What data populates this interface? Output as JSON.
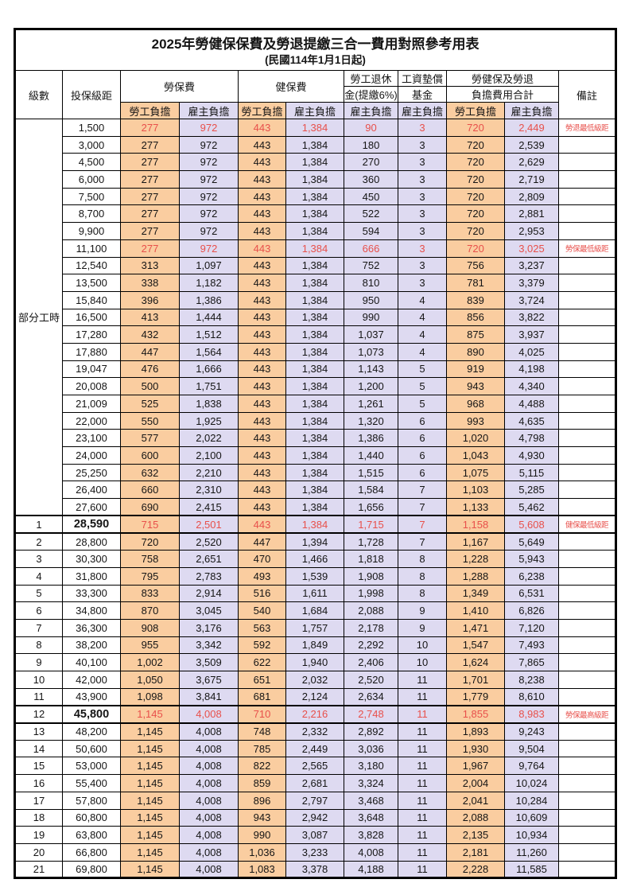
{
  "title": "2025年勞健保保費及勞退提繳三合一費用對照參考用表",
  "subtitle": "(民國114年1月1日起)",
  "colors": {
    "employee_column_bg": "#FACDA0",
    "employer_column_bg": "#DEDAF1",
    "highlight_text": "#E8504B",
    "border": "#000000"
  },
  "header": {
    "level": "級數",
    "bracket": "投保級距",
    "labor_insurance": "勞保費",
    "health_insurance": "健保費",
    "pension_line1": "勞工退休",
    "pension_line2": "金(提繳6%)",
    "wage_fund_line1": "工資墊償",
    "wage_fund_line2": "基金",
    "total_line1": "勞健保及勞退",
    "total_line2": "負擔費用合計",
    "remark": "備註",
    "employee": "勞工負擔",
    "employer": "雇主負擔"
  },
  "part_time_label": "部分工時",
  "part_time_rowspan": 23,
  "rows": [
    {
      "level": "",
      "bracket": "1,500",
      "li_emp": "277",
      "li_er": "972",
      "hi_emp": "443",
      "hi_er": "1,384",
      "pension": "90",
      "fund": "3",
      "tot_emp": "720",
      "tot_er": "2,449",
      "remark": "勞退最低級距",
      "red": true,
      "bold": false,
      "section": false
    },
    {
      "level": "",
      "bracket": "3,000",
      "li_emp": "277",
      "li_er": "972",
      "hi_emp": "443",
      "hi_er": "1,384",
      "pension": "180",
      "fund": "3",
      "tot_emp": "720",
      "tot_er": "2,539",
      "remark": "",
      "red": false,
      "bold": false,
      "section": false
    },
    {
      "level": "",
      "bracket": "4,500",
      "li_emp": "277",
      "li_er": "972",
      "hi_emp": "443",
      "hi_er": "1,384",
      "pension": "270",
      "fund": "3",
      "tot_emp": "720",
      "tot_er": "2,629",
      "remark": "",
      "red": false,
      "bold": false,
      "section": false
    },
    {
      "level": "",
      "bracket": "6,000",
      "li_emp": "277",
      "li_er": "972",
      "hi_emp": "443",
      "hi_er": "1,384",
      "pension": "360",
      "fund": "3",
      "tot_emp": "720",
      "tot_er": "2,719",
      "remark": "",
      "red": false,
      "bold": false,
      "section": false
    },
    {
      "level": "",
      "bracket": "7,500",
      "li_emp": "277",
      "li_er": "972",
      "hi_emp": "443",
      "hi_er": "1,384",
      "pension": "450",
      "fund": "3",
      "tot_emp": "720",
      "tot_er": "2,809",
      "remark": "",
      "red": false,
      "bold": false,
      "section": false
    },
    {
      "level": "",
      "bracket": "8,700",
      "li_emp": "277",
      "li_er": "972",
      "hi_emp": "443",
      "hi_er": "1,384",
      "pension": "522",
      "fund": "3",
      "tot_emp": "720",
      "tot_er": "2,881",
      "remark": "",
      "red": false,
      "bold": false,
      "section": false
    },
    {
      "level": "",
      "bracket": "9,900",
      "li_emp": "277",
      "li_er": "972",
      "hi_emp": "443",
      "hi_er": "1,384",
      "pension": "594",
      "fund": "3",
      "tot_emp": "720",
      "tot_er": "2,953",
      "remark": "",
      "red": false,
      "bold": false,
      "section": false
    },
    {
      "level": "",
      "bracket": "11,100",
      "li_emp": "277",
      "li_er": "972",
      "hi_emp": "443",
      "hi_er": "1,384",
      "pension": "666",
      "fund": "3",
      "tot_emp": "720",
      "tot_er": "3,025",
      "remark": "勞保最低級距",
      "red": true,
      "bold": false,
      "section": false
    },
    {
      "level": "",
      "bracket": "12,540",
      "li_emp": "313",
      "li_er": "1,097",
      "hi_emp": "443",
      "hi_er": "1,384",
      "pension": "752",
      "fund": "3",
      "tot_emp": "756",
      "tot_er": "3,237",
      "remark": "",
      "red": false,
      "bold": false,
      "section": false
    },
    {
      "level": "",
      "bracket": "13,500",
      "li_emp": "338",
      "li_er": "1,182",
      "hi_emp": "443",
      "hi_er": "1,384",
      "pension": "810",
      "fund": "3",
      "tot_emp": "781",
      "tot_er": "3,379",
      "remark": "",
      "red": false,
      "bold": false,
      "section": false
    },
    {
      "level": "",
      "bracket": "15,840",
      "li_emp": "396",
      "li_er": "1,386",
      "hi_emp": "443",
      "hi_er": "1,384",
      "pension": "950",
      "fund": "4",
      "tot_emp": "839",
      "tot_er": "3,724",
      "remark": "",
      "red": false,
      "bold": false,
      "section": false
    },
    {
      "level": "",
      "bracket": "16,500",
      "li_emp": "413",
      "li_er": "1,444",
      "hi_emp": "443",
      "hi_er": "1,384",
      "pension": "990",
      "fund": "4",
      "tot_emp": "856",
      "tot_er": "3,822",
      "remark": "",
      "red": false,
      "bold": false,
      "section": false
    },
    {
      "level": "",
      "bracket": "17,280",
      "li_emp": "432",
      "li_er": "1,512",
      "hi_emp": "443",
      "hi_er": "1,384",
      "pension": "1,037",
      "fund": "4",
      "tot_emp": "875",
      "tot_er": "3,937",
      "remark": "",
      "red": false,
      "bold": false,
      "section": false
    },
    {
      "level": "",
      "bracket": "17,880",
      "li_emp": "447",
      "li_er": "1,564",
      "hi_emp": "443",
      "hi_er": "1,384",
      "pension": "1,073",
      "fund": "4",
      "tot_emp": "890",
      "tot_er": "4,025",
      "remark": "",
      "red": false,
      "bold": false,
      "section": false
    },
    {
      "level": "",
      "bracket": "19,047",
      "li_emp": "476",
      "li_er": "1,666",
      "hi_emp": "443",
      "hi_er": "1,384",
      "pension": "1,143",
      "fund": "5",
      "tot_emp": "919",
      "tot_er": "4,198",
      "remark": "",
      "red": false,
      "bold": false,
      "section": false
    },
    {
      "level": "",
      "bracket": "20,008",
      "li_emp": "500",
      "li_er": "1,751",
      "hi_emp": "443",
      "hi_er": "1,384",
      "pension": "1,200",
      "fund": "5",
      "tot_emp": "943",
      "tot_er": "4,340",
      "remark": "",
      "red": false,
      "bold": false,
      "section": false
    },
    {
      "level": "",
      "bracket": "21,009",
      "li_emp": "525",
      "li_er": "1,838",
      "hi_emp": "443",
      "hi_er": "1,384",
      "pension": "1,261",
      "fund": "5",
      "tot_emp": "968",
      "tot_er": "4,488",
      "remark": "",
      "red": false,
      "bold": false,
      "section": false
    },
    {
      "level": "",
      "bracket": "22,000",
      "li_emp": "550",
      "li_er": "1,925",
      "hi_emp": "443",
      "hi_er": "1,384",
      "pension": "1,320",
      "fund": "6",
      "tot_emp": "993",
      "tot_er": "4,635",
      "remark": "",
      "red": false,
      "bold": false,
      "section": false
    },
    {
      "level": "",
      "bracket": "23,100",
      "li_emp": "577",
      "li_er": "2,022",
      "hi_emp": "443",
      "hi_er": "1,384",
      "pension": "1,386",
      "fund": "6",
      "tot_emp": "1,020",
      "tot_er": "4,798",
      "remark": "",
      "red": false,
      "bold": false,
      "section": false
    },
    {
      "level": "",
      "bracket": "24,000",
      "li_emp": "600",
      "li_er": "2,100",
      "hi_emp": "443",
      "hi_er": "1,384",
      "pension": "1,440",
      "fund": "6",
      "tot_emp": "1,043",
      "tot_er": "4,930",
      "remark": "",
      "red": false,
      "bold": false,
      "section": false
    },
    {
      "level": "",
      "bracket": "25,250",
      "li_emp": "632",
      "li_er": "2,210",
      "hi_emp": "443",
      "hi_er": "1,384",
      "pension": "1,515",
      "fund": "6",
      "tot_emp": "1,075",
      "tot_er": "5,115",
      "remark": "",
      "red": false,
      "bold": false,
      "section": false
    },
    {
      "level": "",
      "bracket": "26,400",
      "li_emp": "660",
      "li_er": "2,310",
      "hi_emp": "443",
      "hi_er": "1,384",
      "pension": "1,584",
      "fund": "7",
      "tot_emp": "1,103",
      "tot_er": "5,285",
      "remark": "",
      "red": false,
      "bold": false,
      "section": false
    },
    {
      "level": "",
      "bracket": "27,600",
      "li_emp": "690",
      "li_er": "2,415",
      "hi_emp": "443",
      "hi_er": "1,384",
      "pension": "1,656",
      "fund": "7",
      "tot_emp": "1,133",
      "tot_er": "5,462",
      "remark": "",
      "red": false,
      "bold": false,
      "section": false
    },
    {
      "level": "1",
      "bracket": "28,590",
      "li_emp": "715",
      "li_er": "2,501",
      "hi_emp": "443",
      "hi_er": "1,384",
      "pension": "1,715",
      "fund": "7",
      "tot_emp": "1,158",
      "tot_er": "5,608",
      "remark": "健保最低級距",
      "red": true,
      "bold": true,
      "section": true
    },
    {
      "level": "2",
      "bracket": "28,800",
      "li_emp": "720",
      "li_er": "2,520",
      "hi_emp": "447",
      "hi_er": "1,394",
      "pension": "1,728",
      "fund": "7",
      "tot_emp": "1,167",
      "tot_er": "5,649",
      "remark": "",
      "red": false,
      "bold": false,
      "section": false
    },
    {
      "level": "3",
      "bracket": "30,300",
      "li_emp": "758",
      "li_er": "2,651",
      "hi_emp": "470",
      "hi_er": "1,466",
      "pension": "1,818",
      "fund": "8",
      "tot_emp": "1,228",
      "tot_er": "5,943",
      "remark": "",
      "red": false,
      "bold": false,
      "section": false
    },
    {
      "level": "4",
      "bracket": "31,800",
      "li_emp": "795",
      "li_er": "2,783",
      "hi_emp": "493",
      "hi_er": "1,539",
      "pension": "1,908",
      "fund": "8",
      "tot_emp": "1,288",
      "tot_er": "6,238",
      "remark": "",
      "red": false,
      "bold": false,
      "section": false
    },
    {
      "level": "5",
      "bracket": "33,300",
      "li_emp": "833",
      "li_er": "2,914",
      "hi_emp": "516",
      "hi_er": "1,611",
      "pension": "1,998",
      "fund": "8",
      "tot_emp": "1,349",
      "tot_er": "6,531",
      "remark": "",
      "red": false,
      "bold": false,
      "section": false
    },
    {
      "level": "6",
      "bracket": "34,800",
      "li_emp": "870",
      "li_er": "3,045",
      "hi_emp": "540",
      "hi_er": "1,684",
      "pension": "2,088",
      "fund": "9",
      "tot_emp": "1,410",
      "tot_er": "6,826",
      "remark": "",
      "red": false,
      "bold": false,
      "section": false
    },
    {
      "level": "7",
      "bracket": "36,300",
      "li_emp": "908",
      "li_er": "3,176",
      "hi_emp": "563",
      "hi_er": "1,757",
      "pension": "2,178",
      "fund": "9",
      "tot_emp": "1,471",
      "tot_er": "7,120",
      "remark": "",
      "red": false,
      "bold": false,
      "section": false
    },
    {
      "level": "8",
      "bracket": "38,200",
      "li_emp": "955",
      "li_er": "3,342",
      "hi_emp": "592",
      "hi_er": "1,849",
      "pension": "2,292",
      "fund": "10",
      "tot_emp": "1,547",
      "tot_er": "7,493",
      "remark": "",
      "red": false,
      "bold": false,
      "section": false
    },
    {
      "level": "9",
      "bracket": "40,100",
      "li_emp": "1,002",
      "li_er": "3,509",
      "hi_emp": "622",
      "hi_er": "1,940",
      "pension": "2,406",
      "fund": "10",
      "tot_emp": "1,624",
      "tot_er": "7,865",
      "remark": "",
      "red": false,
      "bold": false,
      "section": false
    },
    {
      "level": "10",
      "bracket": "42,000",
      "li_emp": "1,050",
      "li_er": "3,675",
      "hi_emp": "651",
      "hi_er": "2,032",
      "pension": "2,520",
      "fund": "11",
      "tot_emp": "1,701",
      "tot_er": "8,238",
      "remark": "",
      "red": false,
      "bold": false,
      "section": false
    },
    {
      "level": "11",
      "bracket": "43,900",
      "li_emp": "1,098",
      "li_er": "3,841",
      "hi_emp": "681",
      "hi_er": "2,124",
      "pension": "2,634",
      "fund": "11",
      "tot_emp": "1,779",
      "tot_er": "8,610",
      "remark": "",
      "red": false,
      "bold": false,
      "section": false
    },
    {
      "level": "12",
      "bracket": "45,800",
      "li_emp": "1,145",
      "li_er": "4,008",
      "hi_emp": "710",
      "hi_er": "2,216",
      "pension": "2,748",
      "fund": "11",
      "tot_emp": "1,855",
      "tot_er": "8,983",
      "remark": "勞保最高級距",
      "red": true,
      "bold": true,
      "section": true
    },
    {
      "level": "13",
      "bracket": "48,200",
      "li_emp": "1,145",
      "li_er": "4,008",
      "hi_emp": "748",
      "hi_er": "2,332",
      "pension": "2,892",
      "fund": "11",
      "tot_emp": "1,893",
      "tot_er": "9,243",
      "remark": "",
      "red": false,
      "bold": false,
      "section": false
    },
    {
      "level": "14",
      "bracket": "50,600",
      "li_emp": "1,145",
      "li_er": "4,008",
      "hi_emp": "785",
      "hi_er": "2,449",
      "pension": "3,036",
      "fund": "11",
      "tot_emp": "1,930",
      "tot_er": "9,504",
      "remark": "",
      "red": false,
      "bold": false,
      "section": false
    },
    {
      "level": "15",
      "bracket": "53,000",
      "li_emp": "1,145",
      "li_er": "4,008",
      "hi_emp": "822",
      "hi_er": "2,565",
      "pension": "3,180",
      "fund": "11",
      "tot_emp": "1,967",
      "tot_er": "9,764",
      "remark": "",
      "red": false,
      "bold": false,
      "section": false
    },
    {
      "level": "16",
      "bracket": "55,400",
      "li_emp": "1,145",
      "li_er": "4,008",
      "hi_emp": "859",
      "hi_er": "2,681",
      "pension": "3,324",
      "fund": "11",
      "tot_emp": "2,004",
      "tot_er": "10,024",
      "remark": "",
      "red": false,
      "bold": false,
      "section": false
    },
    {
      "level": "17",
      "bracket": "57,800",
      "li_emp": "1,145",
      "li_er": "4,008",
      "hi_emp": "896",
      "hi_er": "2,797",
      "pension": "3,468",
      "fund": "11",
      "tot_emp": "2,041",
      "tot_er": "10,284",
      "remark": "",
      "red": false,
      "bold": false,
      "section": false
    },
    {
      "level": "18",
      "bracket": "60,800",
      "li_emp": "1,145",
      "li_er": "4,008",
      "hi_emp": "943",
      "hi_er": "2,942",
      "pension": "3,648",
      "fund": "11",
      "tot_emp": "2,088",
      "tot_er": "10,609",
      "remark": "",
      "red": false,
      "bold": false,
      "section": false
    },
    {
      "level": "19",
      "bracket": "63,800",
      "li_emp": "1,145",
      "li_er": "4,008",
      "hi_emp": "990",
      "hi_er": "3,087",
      "pension": "3,828",
      "fund": "11",
      "tot_emp": "2,135",
      "tot_er": "10,934",
      "remark": "",
      "red": false,
      "bold": false,
      "section": false
    },
    {
      "level": "20",
      "bracket": "66,800",
      "li_emp": "1,145",
      "li_er": "4,008",
      "hi_emp": "1,036",
      "hi_er": "3,233",
      "pension": "4,008",
      "fund": "11",
      "tot_emp": "2,181",
      "tot_er": "11,260",
      "remark": "",
      "red": false,
      "bold": false,
      "section": false
    },
    {
      "level": "21",
      "bracket": "69,800",
      "li_emp": "1,145",
      "li_er": "4,008",
      "hi_emp": "1,083",
      "hi_er": "3,378",
      "pension": "4,188",
      "fund": "11",
      "tot_emp": "2,228",
      "tot_er": "11,585",
      "remark": "",
      "red": false,
      "bold": false,
      "section": false
    }
  ]
}
